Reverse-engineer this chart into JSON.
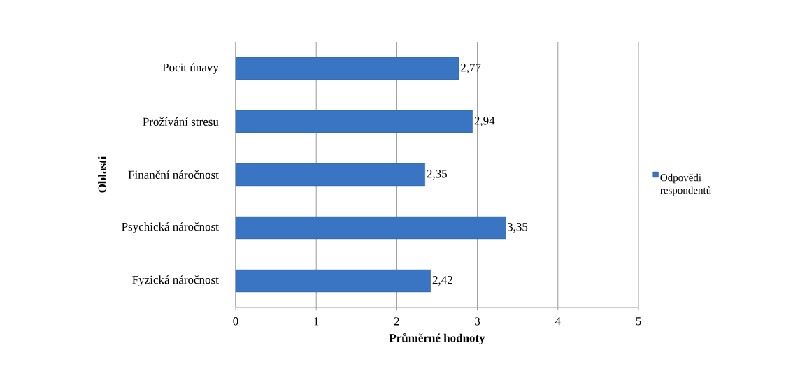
{
  "chart_data": {
    "type": "bar",
    "orientation": "horizontal",
    "xlabel": "Průměrné hodnoty",
    "ylabel": "Oblasti",
    "categories": [
      "Pocit únavy",
      "Prožívání stresu",
      "Finanční náročnost",
      "Psychická náročnost",
      "Fyzická náročnost"
    ],
    "series": [
      {
        "name": "Odpovědi respondentů",
        "color": "#3a75c4",
        "values": [
          2.77,
          2.94,
          2.35,
          3.35,
          2.42
        ],
        "value_labels": [
          "2,77",
          "2,94",
          "2,35",
          "3,35",
          "2,42"
        ]
      }
    ],
    "xlim": [
      0,
      5
    ],
    "xticks": [
      0,
      1,
      2,
      3,
      4,
      5
    ],
    "grid": "x",
    "legend": "right"
  }
}
